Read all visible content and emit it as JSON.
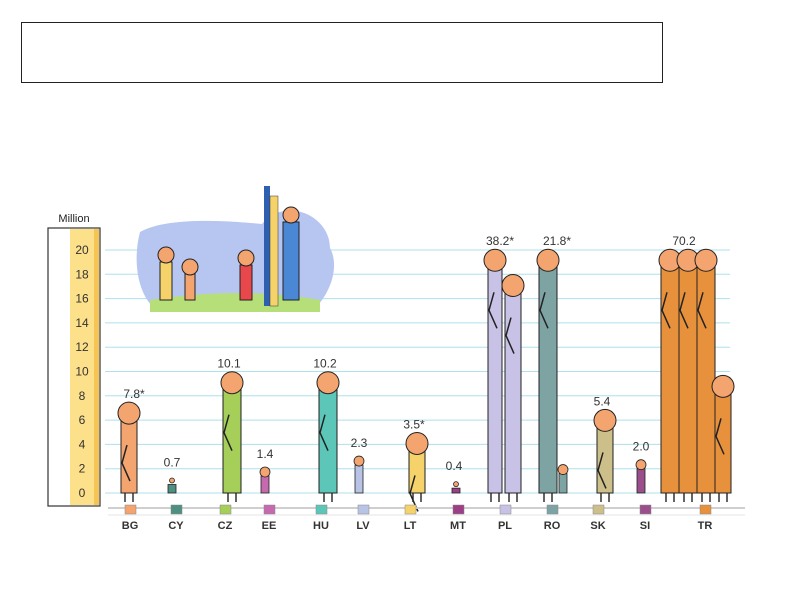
{
  "title": "",
  "chart_data": {
    "type": "bar",
    "ylabel": "Million",
    "ylim": [
      0,
      21
    ],
    "yticks": [
      0,
      2,
      4,
      6,
      8,
      10,
      12,
      14,
      16,
      18,
      20
    ],
    "grid": true,
    "categories": [
      "BG",
      "CY",
      "CZ",
      "EE",
      "HU",
      "LV",
      "LT",
      "MT",
      "PL",
      "RO",
      "SK",
      "SI",
      "TR"
    ],
    "values": [
      7.8,
      0.7,
      10.1,
      1.4,
      10.2,
      2.3,
      3.5,
      0.4,
      38.2,
      21.8,
      5.4,
      2.0,
      70.2
    ],
    "value_labels": [
      "7.8*",
      "0.7",
      "10.1",
      "1.4",
      "10.2",
      "2.3",
      "3.5*",
      "0.4",
      "38.2*",
      "21.8*",
      "5.4",
      "2.0",
      "70.2"
    ],
    "colors": [
      "#f4a46f",
      "#4e8f82",
      "#a6cf5a",
      "#c66ab0",
      "#5cc7b8",
      "#b9c3e6",
      "#f6d36a",
      "#9c3f86",
      "#c8c2e6",
      "#7ea3a3",
      "#cdbf8a",
      "#9a4f8c",
      "#e8913c"
    ]
  }
}
